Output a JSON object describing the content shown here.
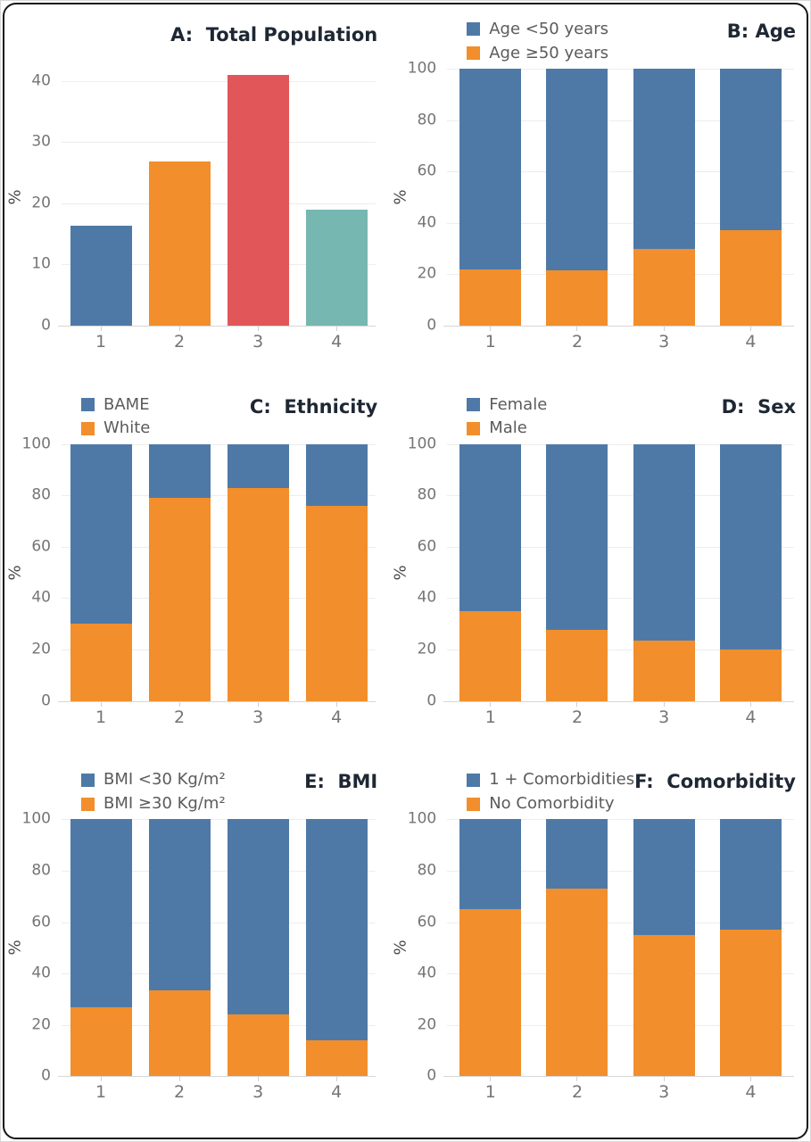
{
  "figure": {
    "background": "#ffffff",
    "border_color": "#161616",
    "palette": {
      "blue": "#4e79a7",
      "orange": "#f28e2b",
      "red": "#e15759",
      "teal": "#76b7b2"
    }
  },
  "chart_data": [
    {
      "id": "A",
      "title": "A:  Total Population",
      "type": "bar",
      "categories": [
        "1",
        "2",
        "3",
        "4"
      ],
      "values": [
        16.3,
        26.8,
        41,
        19
      ],
      "bar_colors": [
        "#4e79a7",
        "#f28e2b",
        "#e15759",
        "#76b7b2"
      ],
      "xlabel": "",
      "ylabel": "%",
      "ylim": [
        0,
        42
      ],
      "yticks": [
        0,
        10,
        20,
        30,
        40
      ],
      "grid": true,
      "legend_position": "none"
    },
    {
      "id": "B",
      "title": "B: Age",
      "type": "bar",
      "stacked": true,
      "categories": [
        "1",
        "2",
        "3",
        "4"
      ],
      "series": [
        {
          "name": "Age <50 years",
          "color": "#4e79a7",
          "values": [
            78,
            78.5,
            70,
            63
          ]
        },
        {
          "name": "Age ≥50 years",
          "color": "#f28e2b",
          "values": [
            22,
            21.5,
            30,
            37
          ]
        }
      ],
      "xlabel": "",
      "ylabel": "%",
      "ylim": [
        0,
        100
      ],
      "yticks": [
        0,
        20,
        40,
        60,
        80,
        100
      ],
      "grid": true,
      "legend_position": "top-left"
    },
    {
      "id": "C",
      "title": "C:  Ethnicity",
      "type": "bar",
      "stacked": true,
      "categories": [
        "1",
        "2",
        "3",
        "4"
      ],
      "series": [
        {
          "name": "BAME",
          "color": "#4e79a7",
          "values": [
            70,
            21,
            17,
            24
          ]
        },
        {
          "name": "White",
          "color": "#f28e2b",
          "values": [
            30,
            79,
            83,
            76
          ]
        }
      ],
      "xlabel": "",
      "ylabel": "%",
      "ylim": [
        0,
        100
      ],
      "yticks": [
        0,
        20,
        40,
        60,
        80,
        100
      ],
      "grid": true,
      "legend_position": "top-left"
    },
    {
      "id": "D",
      "title": "D:  Sex",
      "type": "bar",
      "stacked": true,
      "categories": [
        "1",
        "2",
        "3",
        "4"
      ],
      "series": [
        {
          "name": "Female",
          "color": "#4e79a7",
          "values": [
            65,
            72.5,
            76.5,
            80
          ]
        },
        {
          "name": "Male",
          "color": "#f28e2b",
          "values": [
            35,
            27.5,
            23.5,
            20
          ]
        }
      ],
      "xlabel": "",
      "ylabel": "%",
      "ylim": [
        0,
        100
      ],
      "yticks": [
        0,
        20,
        40,
        60,
        80,
        100
      ],
      "grid": true,
      "legend_position": "top-left"
    },
    {
      "id": "E",
      "title": "E:  BMI",
      "type": "bar",
      "stacked": true,
      "categories": [
        "1",
        "2",
        "3",
        "4"
      ],
      "series": [
        {
          "name": "BMI <30 Kg/m²",
          "color": "#4e79a7",
          "values": [
            73,
            66.5,
            76,
            86
          ]
        },
        {
          "name": "BMI ≥30 Kg/m²",
          "color": "#f28e2b",
          "values": [
            27,
            33.5,
            24,
            14
          ]
        }
      ],
      "xlabel": "",
      "ylabel": "%",
      "ylim": [
        0,
        100
      ],
      "yticks": [
        0,
        20,
        40,
        60,
        80,
        100
      ],
      "grid": true,
      "legend_position": "top-left"
    },
    {
      "id": "F",
      "title": "F:  Comorbidity",
      "type": "bar",
      "stacked": true,
      "categories": [
        "1",
        "2",
        "3",
        "4"
      ],
      "series": [
        {
          "name": "1 + Comorbidities",
          "color": "#4e79a7",
          "values": [
            35,
            27,
            45,
            43
          ]
        },
        {
          "name": "No Comorbidity",
          "color": "#f28e2b",
          "values": [
            65,
            73,
            55,
            57
          ]
        }
      ],
      "xlabel": "",
      "ylabel": "%",
      "ylim": [
        0,
        100
      ],
      "yticks": [
        0,
        20,
        40,
        60,
        80,
        100
      ],
      "grid": true,
      "legend_position": "top-left"
    }
  ]
}
